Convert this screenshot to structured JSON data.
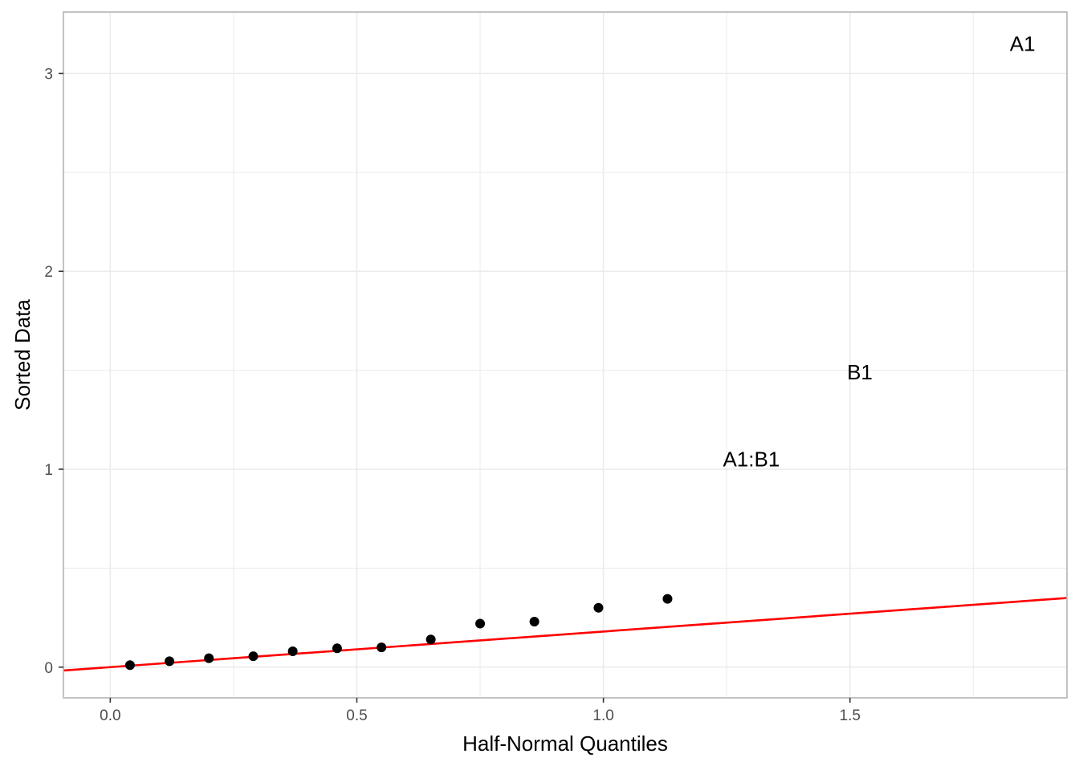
{
  "chart_data": {
    "type": "scatter",
    "title": "",
    "xlabel": "Half-Normal Quantiles",
    "ylabel": "Sorted Data",
    "xlim": [
      -0.095,
      1.94
    ],
    "ylim": [
      -0.155,
      3.31
    ],
    "x_ticks": [
      0.0,
      0.5,
      1.0,
      1.5
    ],
    "x_tick_labels": [
      "0.0",
      "0.5",
      "1.0",
      "1.5"
    ],
    "x_minor_ticks": [
      0.25,
      0.75,
      1.25,
      1.75
    ],
    "y_ticks": [
      0,
      1,
      2,
      3
    ],
    "y_tick_labels": [
      "0",
      "1",
      "2",
      "3"
    ],
    "y_minor_ticks": [
      0.5,
      1.5,
      2.5
    ],
    "grid": true,
    "series": [
      {
        "points": [
          {
            "x": 0.04,
            "y": 0.01
          },
          {
            "x": 0.12,
            "y": 0.03
          },
          {
            "x": 0.2,
            "y": 0.045
          },
          {
            "x": 0.29,
            "y": 0.055
          },
          {
            "x": 0.37,
            "y": 0.08
          },
          {
            "x": 0.46,
            "y": 0.095
          },
          {
            "x": 0.55,
            "y": 0.1
          },
          {
            "x": 0.65,
            "y": 0.14
          },
          {
            "x": 0.75,
            "y": 0.22
          },
          {
            "x": 0.86,
            "y": 0.23
          },
          {
            "x": 0.99,
            "y": 0.3
          },
          {
            "x": 1.13,
            "y": 0.345
          }
        ]
      }
    ],
    "labeled_points": [
      {
        "label": "A1:B1",
        "x": 1.3,
        "y": 1.05
      },
      {
        "label": "B1",
        "x": 1.52,
        "y": 1.49
      },
      {
        "label": "A1",
        "x": 1.85,
        "y": 3.15
      }
    ],
    "reference_line": {
      "slope": 0.18,
      "intercept": 0.0,
      "color": "#ff0000"
    },
    "colors": {
      "points": "#000000",
      "grid": "#ebebeb",
      "panel_border": "#b3b3b3"
    }
  }
}
